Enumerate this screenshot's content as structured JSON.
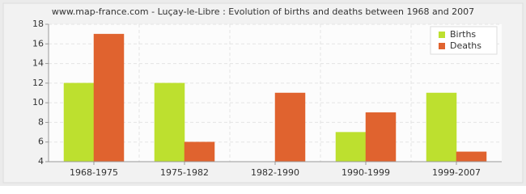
{
  "chart_data": {
    "type": "bar",
    "title": "www.map-france.com - Luçay-le-Libre : Evolution of births and deaths between 1968 and 2007",
    "categories": [
      "1968-1975",
      "1975-1982",
      "1982-1990",
      "1990-1999",
      "1999-2007"
    ],
    "series": [
      {
        "name": "Births",
        "color": "#bde02f",
        "values": [
          12,
          12,
          4,
          7,
          11
        ]
      },
      {
        "name": "Deaths",
        "color": "#e0632f",
        "values": [
          17,
          6,
          11,
          9,
          5
        ]
      }
    ],
    "ylim": [
      4,
      18
    ],
    "yticks": [
      4,
      6,
      8,
      10,
      12,
      14,
      16,
      18
    ],
    "grid": true,
    "legend": "top-right"
  }
}
